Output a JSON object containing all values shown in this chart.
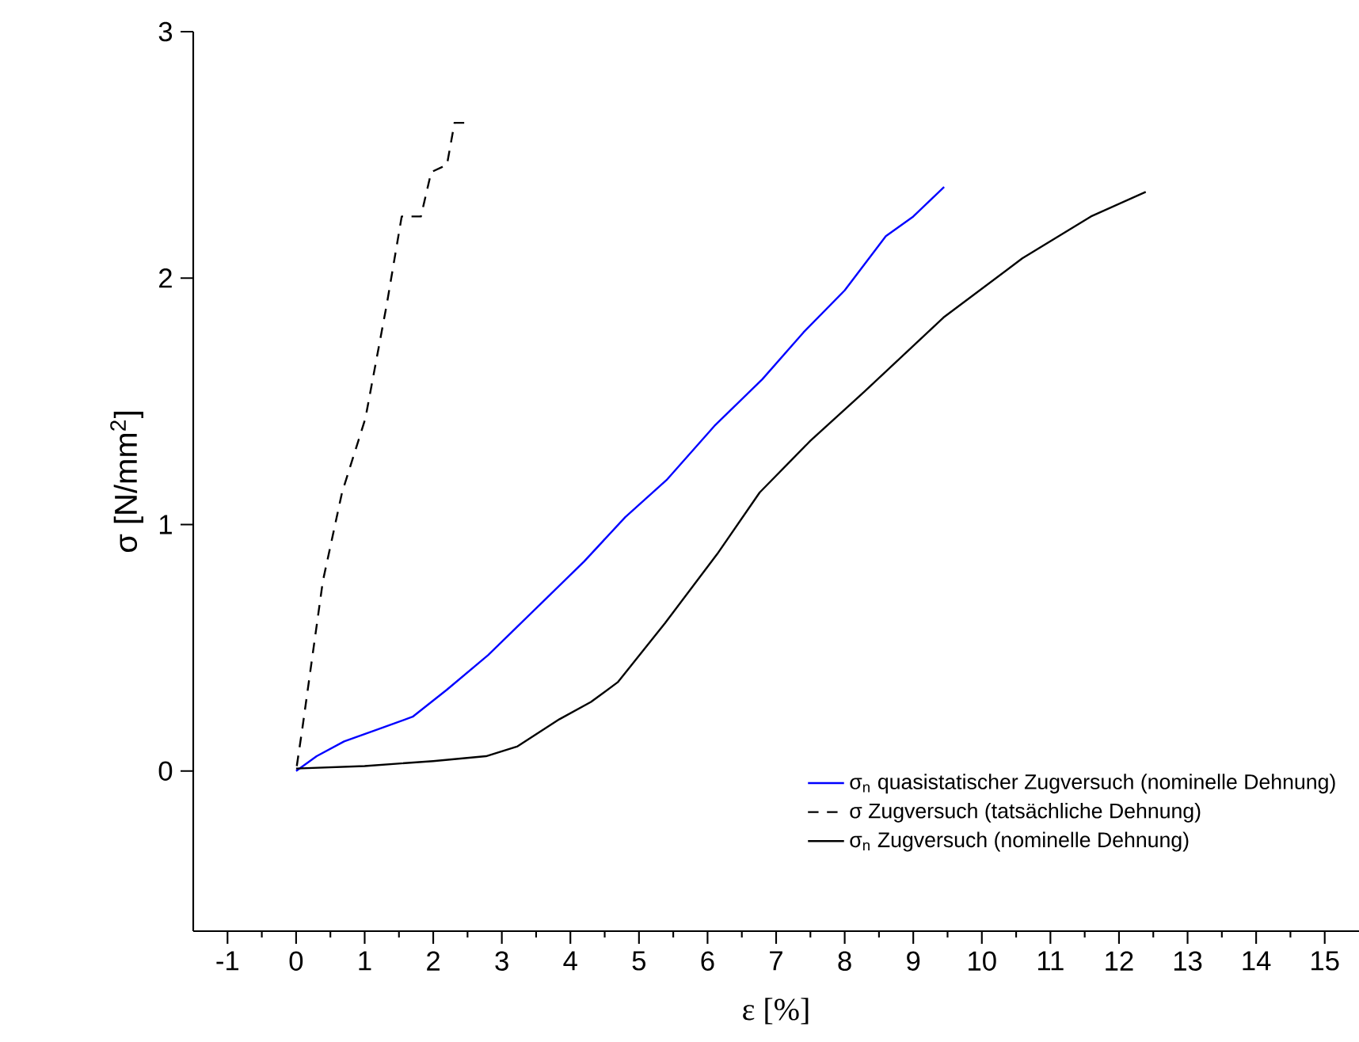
{
  "chart_data": {
    "type": "line",
    "xlabel": "ε [%]",
    "ylabel": "σ [N/mm$^{2}$]",
    "xlim": [
      -1.5,
      15.5
    ],
    "ylim": [
      -0.65,
      3
    ],
    "xticks": [
      -1,
      0,
      1,
      2,
      3,
      4,
      5,
      6,
      7,
      8,
      9,
      10,
      11,
      12,
      13,
      14,
      15
    ],
    "yticks": [
      0,
      1,
      2,
      3
    ],
    "legend": "bottom right",
    "grid": false,
    "marker": "none",
    "series": [
      {
        "name": "σ$_{n}$ quasistatischer Zugversuch (nominelle Dehnung)",
        "color": "#0000ff",
        "line_style": "solid",
        "x": [
          0,
          0.3,
          0.7,
          1.2,
          1.7,
          2.2,
          2.8,
          3.5,
          4.2,
          4.8,
          5.4,
          6.1,
          6.8,
          7.4,
          8.0,
          8.6,
          9.0,
          9.45
        ],
        "values": [
          0,
          0.06,
          0.12,
          0.17,
          0.22,
          0.33,
          0.47,
          0.66,
          0.85,
          1.03,
          1.18,
          1.4,
          1.59,
          1.78,
          1.95,
          2.17,
          2.25,
          2.37
        ]
      },
      {
        "name": "σ Zugversuch (tatsächliche Dehnung)",
        "color": "#000000",
        "line_style": "dashed",
        "x": [
          0.01,
          0.09,
          0.39,
          0.67,
          1.01,
          1.32,
          1.54,
          1.82,
          1.97,
          2.2,
          2.31,
          2.5
        ],
        "values": [
          0.02,
          0.17,
          0.77,
          1.13,
          1.43,
          1.89,
          2.25,
          2.25,
          2.43,
          2.46,
          2.63,
          2.63
        ]
      },
      {
        "name": "σ$_{n}$ Zugversuch (nominelle Dehnung)",
        "color": "#000000",
        "line_style": "solid",
        "x": [
          0,
          1,
          2,
          2.77,
          3.23,
          3.84,
          4.3,
          4.69,
          5.38,
          6.14,
          6.76,
          7.5,
          8.29,
          9.44,
          10.59,
          11.59,
          12.39
        ],
        "values": [
          0.01,
          0.02,
          0.04,
          0.06,
          0.1,
          0.21,
          0.28,
          0.36,
          0.6,
          0.88,
          1.13,
          1.34,
          1.54,
          1.84,
          2.08,
          2.25,
          2.35
        ]
      }
    ]
  }
}
